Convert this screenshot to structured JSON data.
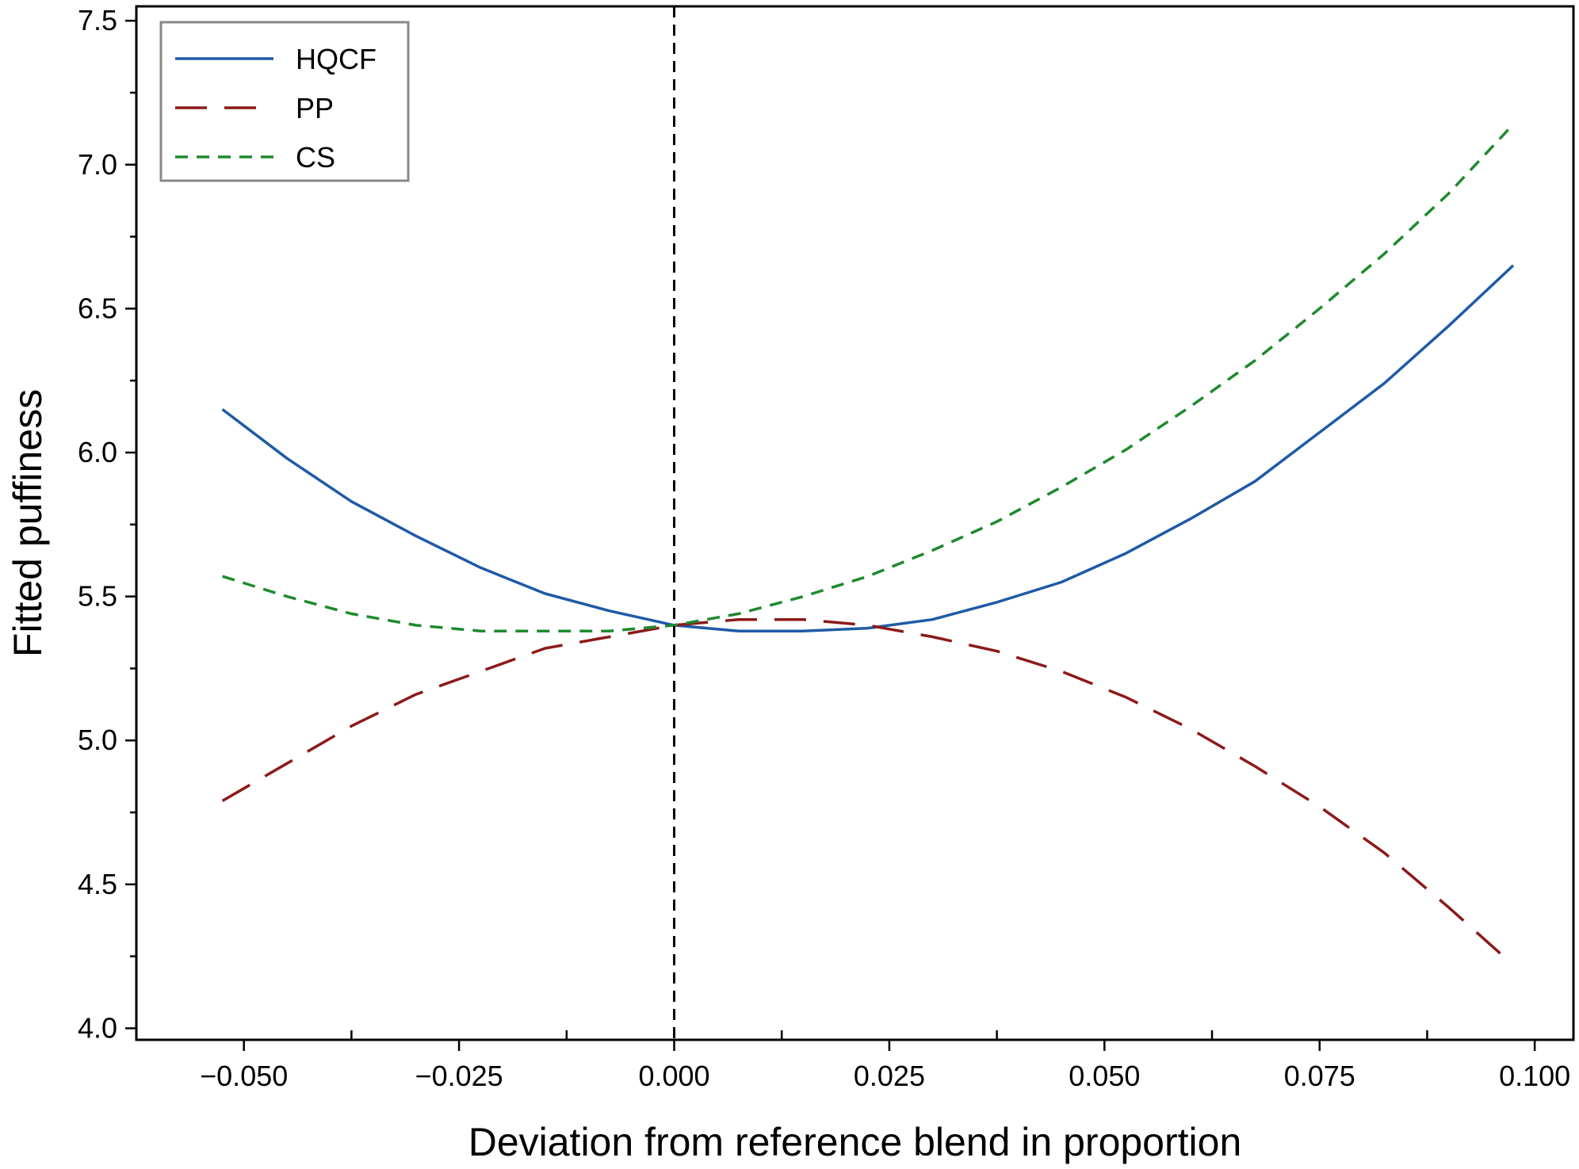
{
  "chart_data": {
    "type": "line",
    "xlabel": "Deviation from reference blend in proportion",
    "ylabel": "Fitted puffiness",
    "xlim": [
      -0.0625,
      0.1045
    ],
    "ylim": [
      3.96,
      7.55
    ],
    "x_ticks": [
      -0.05,
      -0.025,
      0.0,
      0.025,
      0.05,
      0.075,
      0.1
    ],
    "x_tick_labels": [
      "−0.050",
      "−0.025",
      "0.000",
      "0.025",
      "0.050",
      "0.075",
      "0.100"
    ],
    "x_minor_step": 0.0125,
    "y_ticks": [
      4.0,
      4.5,
      5.0,
      5.5,
      6.0,
      6.5,
      7.0,
      7.5
    ],
    "y_tick_labels": [
      "4.0",
      "4.5",
      "5.0",
      "5.5",
      "6.0",
      "6.5",
      "7.0",
      "7.5"
    ],
    "y_minor_step": 0.25,
    "reference_line_x": 0.0,
    "legend_position": "top-left",
    "x": [
      -0.0525,
      -0.045,
      -0.0375,
      -0.03,
      -0.0225,
      -0.015,
      -0.0075,
      0.0,
      0.0075,
      0.015,
      0.0225,
      0.03,
      0.0375,
      0.045,
      0.0525,
      0.06,
      0.0675,
      0.075,
      0.0825,
      0.09,
      0.0975
    ],
    "series": [
      {
        "name": "HQCF",
        "color": "#1f5aa6",
        "style": "solid",
        "values": [
          6.15,
          5.98,
          5.83,
          5.71,
          5.6,
          5.51,
          5.45,
          5.4,
          5.38,
          5.38,
          5.39,
          5.42,
          5.48,
          5.55,
          5.65,
          5.77,
          5.9,
          6.07,
          6.24,
          6.44,
          6.65
        ]
      },
      {
        "name": "PP",
        "color": "#8c1a1a",
        "style": "long-dash",
        "values": [
          4.79,
          4.92,
          5.05,
          5.16,
          5.24,
          5.32,
          5.36,
          5.4,
          5.42,
          5.42,
          5.4,
          5.36,
          5.31,
          5.24,
          5.15,
          5.04,
          4.91,
          4.77,
          4.61,
          4.42,
          4.22
        ]
      },
      {
        "name": "CS",
        "color": "#1e8a2e",
        "style": "short-dash",
        "values": [
          5.57,
          5.5,
          5.44,
          5.4,
          5.38,
          5.38,
          5.38,
          5.4,
          5.44,
          5.5,
          5.57,
          5.66,
          5.76,
          5.88,
          6.01,
          6.16,
          6.32,
          6.5,
          6.69,
          6.9,
          7.14
        ]
      }
    ]
  }
}
